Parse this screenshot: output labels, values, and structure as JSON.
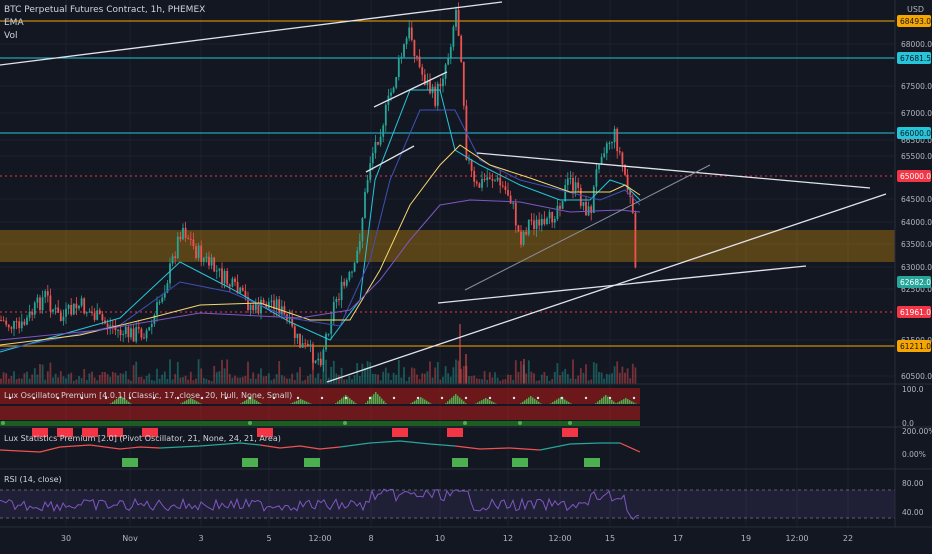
{
  "header": {
    "symbol": "BTC Perpetual Futures Contract, 1h, PHEMEX",
    "indicator_1": "EMA",
    "indicator_2": "Vol",
    "currency": "USD"
  },
  "price_axis": {
    "ticks": [
      "68000.0",
      "67500.0",
      "67000.0",
      "66500.0",
      "65500.0",
      "64500.0",
      "64000.0",
      "63500.0",
      "63000.0",
      "62500.0",
      "61500.0",
      "60500.0"
    ],
    "badges": [
      {
        "label": "68493.0",
        "color": "#f7a600",
        "text_color": "#131722"
      },
      {
        "label": "67681.5",
        "color": "#26c6da",
        "text_color": "#131722"
      },
      {
        "label": "66000.0",
        "color": "#26c6da",
        "text_color": "#131722"
      },
      {
        "label": "65000.0",
        "color": "#f23645",
        "text_color": "#ffffff"
      },
      {
        "label": "62682.0",
        "color": "#26a69a",
        "text_color": "#ffffff"
      },
      {
        "label": "61961.0",
        "color": "#f23645",
        "text_color": "#ffffff"
      },
      {
        "label": "61211.0",
        "color": "#f7a600",
        "text_color": "#131722"
      }
    ]
  },
  "lux_oscillator": {
    "title": "Lux Oscillator Premium [4.0.1] (Classic, 17, close, 20, Hull, None, Small)",
    "ticks": [
      "100.0",
      "0.0"
    ]
  },
  "lux_statistics": {
    "title": "Lux Statistics Premium [2.0] (Pivot Oscillator, 21, None, 24, 21, Area)",
    "ticks": [
      "200.00%",
      "0.00%"
    ]
  },
  "rsi": {
    "title": "RSI (14, close)",
    "ticks": [
      "80.00",
      "40.00"
    ]
  },
  "time_axis": [
    "30",
    "Nov",
    "3",
    "5",
    "12:00",
    "8",
    "10",
    "12",
    "12:00",
    "15",
    "17",
    "19",
    "12:00",
    "22"
  ],
  "colors": {
    "background": "#131722",
    "up": "#26a69a",
    "down": "#ef5350",
    "orange": "#f7a600",
    "cyan": "#26c6da",
    "rsi_line": "#7e57c2"
  }
}
